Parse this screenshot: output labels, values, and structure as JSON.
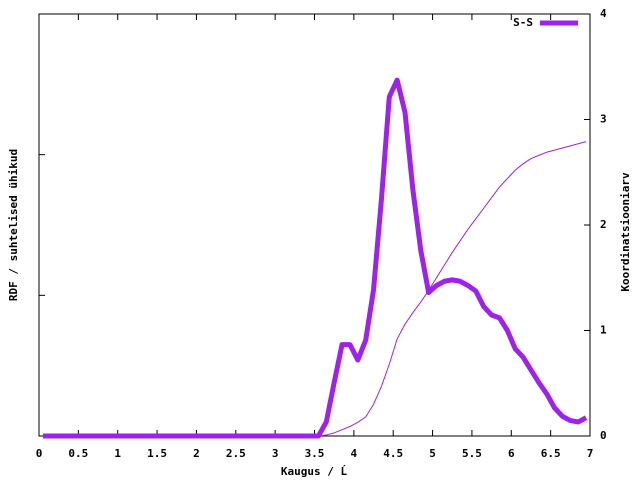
{
  "chart_data": {
    "type": "line",
    "xlabel": "Kaugus / Ĺ",
    "ylabel": "RDF / suhtelised ühikud",
    "y2label": "Koordinatsiooniarv",
    "x": [
      0.05,
      3.55,
      3.65,
      3.75,
      3.85,
      3.95,
      4.05,
      4.15,
      4.25,
      4.35,
      4.45,
      4.55,
      4.65,
      4.75,
      4.85,
      4.95,
      5.05,
      5.15,
      5.25,
      5.35,
      5.45,
      5.55,
      5.65,
      5.75,
      5.85,
      5.95,
      6.05,
      6.15,
      6.25,
      6.35,
      6.45,
      6.55,
      6.65,
      6.75,
      6.85,
      6.95
    ],
    "series": [
      {
        "name": "S-S",
        "color": "#a020f0",
        "width": 5,
        "values": [
          0,
          0,
          0.1,
          0.38,
          0.65,
          0.65,
          0.54,
          0.68,
          1.04,
          1.68,
          2.41,
          2.53,
          2.3,
          1.75,
          1.32,
          1.02,
          1.07,
          1.1,
          1.11,
          1.1,
          1.07,
          1.03,
          0.92,
          0.86,
          0.84,
          0.75,
          0.62,
          0.56,
          0.47,
          0.38,
          0.3,
          0.2,
          0.14,
          0.11,
          0.1,
          0.13
        ]
      },
      {
        "color": "#a020f0",
        "width": 1,
        "axis": "y2",
        "values": [
          0,
          0,
          0.01,
          0.03,
          0.06,
          0.09,
          0.13,
          0.18,
          0.3,
          0.47,
          0.68,
          0.92,
          1.06,
          1.17,
          1.27,
          1.38,
          1.5,
          1.62,
          1.74,
          1.85,
          1.96,
          2.06,
          2.16,
          2.26,
          2.36,
          2.44,
          2.52,
          2.58,
          2.63,
          2.66,
          2.69,
          2.71,
          2.73,
          2.75,
          2.77,
          2.79
        ]
      }
    ],
    "xlim": [
      0,
      7
    ],
    "xticks": [
      0,
      0.5,
      1,
      1.5,
      2,
      2.5,
      3,
      3.5,
      4,
      4.5,
      5,
      5.5,
      6,
      6.5,
      7
    ],
    "ylim": [
      0,
      3
    ],
    "yticks": [
      0,
      1,
      2,
      3
    ],
    "y2lim": [
      0,
      4
    ],
    "y2ticks": [
      0,
      1,
      2,
      3,
      4
    ],
    "legend": "top-right"
  }
}
